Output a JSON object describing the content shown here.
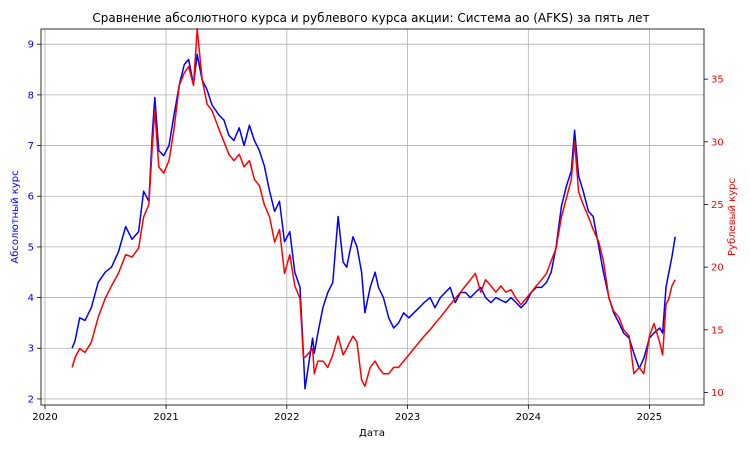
{
  "chart_data": {
    "type": "line",
    "title": "Сравнение абсолютного курса и рублевого курса акции: Система ао (AFKS) за пять лет",
    "xlabel": "Дата",
    "ylabel_left": "Абсолютный курс",
    "ylabel_right": "Рублевый курс",
    "grid": true,
    "xlim": [
      "2019-12-20",
      "2025-06-15"
    ],
    "ylim_left": [
      1.88,
      9.3
    ],
    "ylim_right": [
      9.0,
      39.0
    ],
    "x_ticks": [
      "2020",
      "2021",
      "2022",
      "2023",
      "2024",
      "2025"
    ],
    "y_ticks_left": [
      "2",
      "3",
      "4",
      "5",
      "6",
      "7",
      "8",
      "9"
    ],
    "y_ticks_right": [
      "10",
      "15",
      "20",
      "25",
      "30",
      "35"
    ],
    "colors": {
      "left": "#0000ff",
      "right": "#ff0000"
    },
    "series": [
      {
        "axis": "left",
        "color": "#0000ff",
        "x": [
          "2020-03-23",
          "2020-04-01",
          "2020-04-15",
          "2020-05-01",
          "2020-05-20",
          "2020-06-10",
          "2020-07-01",
          "2020-07-20",
          "2020-08-10",
          "2020-09-01",
          "2020-09-20",
          "2020-10-10",
          "2020-10-25",
          "2020-11-10",
          "2020-11-20",
          "2020-11-28",
          "2020-12-10",
          "2020-12-25",
          "2021-01-10",
          "2021-01-25",
          "2021-02-10",
          "2021-02-25",
          "2021-03-10",
          "2021-03-25",
          "2021-04-05",
          "2021-04-20",
          "2021-05-05",
          "2021-05-20",
          "2021-06-10",
          "2021-06-25",
          "2021-07-10",
          "2021-07-25",
          "2021-08-10",
          "2021-08-25",
          "2021-09-10",
          "2021-09-25",
          "2021-10-10",
          "2021-10-25",
          "2021-11-10",
          "2021-11-25",
          "2021-12-10",
          "2021-12-25",
          "2022-01-10",
          "2022-01-25",
          "2022-02-10",
          "2022-02-20",
          "2022-02-25",
          "2022-03-20",
          "2022-03-25",
          "2022-04-05",
          "2022-04-20",
          "2022-05-05",
          "2022-05-20",
          "2022-06-05",
          "2022-06-20",
          "2022-07-01",
          "2022-07-10",
          "2022-07-20",
          "2022-08-01",
          "2022-08-15",
          "2022-08-25",
          "2022-09-10",
          "2022-09-25",
          "2022-10-05",
          "2022-10-20",
          "2022-11-05",
          "2022-11-20",
          "2022-12-05",
          "2022-12-20",
          "2023-01-05",
          "2023-01-20",
          "2023-02-05",
          "2023-02-20",
          "2023-03-10",
          "2023-03-25",
          "2023-04-10",
          "2023-04-25",
          "2023-05-10",
          "2023-05-25",
          "2023-06-10",
          "2023-06-25",
          "2023-07-10",
          "2023-07-25",
          "2023-08-10",
          "2023-08-25",
          "2023-09-10",
          "2023-09-25",
          "2023-10-10",
          "2023-10-25",
          "2023-11-10",
          "2023-11-25",
          "2023-12-10",
          "2023-12-25",
          "2024-01-10",
          "2024-01-25",
          "2024-02-10",
          "2024-02-25",
          "2024-03-10",
          "2024-03-25",
          "2024-04-10",
          "2024-04-25",
          "2024-05-10",
          "2024-05-20",
          "2024-06-01",
          "2024-06-15",
          "2024-07-01",
          "2024-07-15",
          "2024-08-01",
          "2024-08-15",
          "2024-09-01",
          "2024-09-15",
          "2024-10-01",
          "2024-10-15",
          "2024-11-01",
          "2024-11-15",
          "2024-12-01",
          "2024-12-15",
          "2025-01-01",
          "2025-01-15",
          "2025-02-01",
          "2025-02-10",
          "2025-02-20",
          "2025-03-01",
          "2025-03-10",
          "2025-03-20"
        ],
        "values": [
          3.0,
          3.15,
          3.6,
          3.55,
          3.8,
          4.3,
          4.5,
          4.6,
          4.9,
          5.4,
          5.15,
          5.3,
          6.1,
          5.9,
          7.2,
          7.95,
          6.9,
          6.8,
          7.0,
          7.6,
          8.2,
          8.6,
          8.7,
          8.2,
          8.8,
          8.3,
          8.1,
          7.8,
          7.6,
          7.5,
          7.2,
          7.1,
          7.35,
          7.0,
          7.4,
          7.1,
          6.9,
          6.6,
          6.1,
          5.7,
          5.9,
          5.1,
          5.3,
          4.5,
          4.2,
          2.9,
          2.2,
          3.2,
          2.9,
          3.3,
          3.8,
          4.1,
          4.3,
          5.6,
          4.7,
          4.6,
          4.9,
          5.2,
          5.0,
          4.5,
          3.7,
          4.2,
          4.5,
          4.2,
          4.0,
          3.6,
          3.4,
          3.5,
          3.7,
          3.6,
          3.7,
          3.8,
          3.9,
          4.0,
          3.8,
          4.0,
          4.1,
          4.2,
          3.9,
          4.1,
          4.1,
          4.0,
          4.1,
          4.2,
          4.0,
          3.9,
          4.0,
          3.95,
          3.9,
          4.0,
          3.9,
          3.8,
          3.9,
          4.1,
          4.2,
          4.2,
          4.3,
          4.5,
          5.0,
          5.8,
          6.2,
          6.5,
          7.3,
          6.4,
          6.1,
          5.7,
          5.6,
          5.0,
          4.5,
          4.0,
          3.7,
          3.5,
          3.3,
          3.2,
          2.9,
          2.6,
          2.8,
          3.2,
          3.3,
          3.4,
          3.3,
          4.2,
          4.5,
          4.8,
          5.2
        ]
      },
      {
        "axis": "right",
        "color": "#ff0000",
        "x": [
          "2020-03-23",
          "2020-04-01",
          "2020-04-15",
          "2020-05-01",
          "2020-05-20",
          "2020-06-10",
          "2020-07-01",
          "2020-07-20",
          "2020-08-10",
          "2020-09-01",
          "2020-09-20",
          "2020-10-10",
          "2020-10-25",
          "2020-11-10",
          "2020-11-20",
          "2020-11-28",
          "2020-12-10",
          "2020-12-25",
          "2021-01-10",
          "2021-01-25",
          "2021-02-10",
          "2021-02-25",
          "2021-03-10",
          "2021-03-25",
          "2021-04-05",
          "2021-04-20",
          "2021-05-05",
          "2021-05-20",
          "2021-06-10",
          "2021-06-25",
          "2021-07-10",
          "2021-07-25",
          "2021-08-10",
          "2021-08-25",
          "2021-09-10",
          "2021-09-25",
          "2021-10-10",
          "2021-10-25",
          "2021-11-10",
          "2021-11-25",
          "2021-12-10",
          "2021-12-25",
          "2022-01-10",
          "2022-01-25",
          "2022-02-10",
          "2022-02-20",
          "2022-02-25",
          "2022-03-20",
          "2022-03-25",
          "2022-04-05",
          "2022-04-20",
          "2022-05-05",
          "2022-05-20",
          "2022-06-05",
          "2022-06-20",
          "2022-07-01",
          "2022-07-10",
          "2022-07-20",
          "2022-08-01",
          "2022-08-15",
          "2022-08-25",
          "2022-09-10",
          "2022-09-25",
          "2022-10-05",
          "2022-10-20",
          "2022-11-05",
          "2022-11-20",
          "2022-12-05",
          "2022-12-20",
          "2023-01-05",
          "2023-01-20",
          "2023-02-05",
          "2023-02-20",
          "2023-03-10",
          "2023-03-25",
          "2023-04-10",
          "2023-04-25",
          "2023-05-10",
          "2023-05-25",
          "2023-06-10",
          "2023-06-25",
          "2023-07-10",
          "2023-07-25",
          "2023-08-10",
          "2023-08-25",
          "2023-09-10",
          "2023-09-25",
          "2023-10-10",
          "2023-10-25",
          "2023-11-10",
          "2023-11-25",
          "2023-12-10",
          "2023-12-25",
          "2024-01-10",
          "2024-01-25",
          "2024-02-10",
          "2024-02-25",
          "2024-03-10",
          "2024-03-25",
          "2024-04-10",
          "2024-04-25",
          "2024-05-10",
          "2024-05-20",
          "2024-06-01",
          "2024-06-15",
          "2024-07-01",
          "2024-07-15",
          "2024-08-01",
          "2024-08-15",
          "2024-09-01",
          "2024-09-15",
          "2024-10-01",
          "2024-10-15",
          "2024-11-01",
          "2024-11-15",
          "2024-12-01",
          "2024-12-15",
          "2025-01-01",
          "2025-01-15",
          "2025-02-01",
          "2025-02-10",
          "2025-02-20",
          "2025-03-01",
          "2025-03-10",
          "2025-03-20"
        ],
        "values": [
          12.0,
          12.8,
          13.5,
          13.2,
          14.0,
          16.0,
          17.5,
          18.5,
          19.5,
          21.0,
          20.8,
          21.5,
          24.0,
          25.0,
          29.5,
          32.5,
          28.0,
          27.5,
          28.5,
          31.0,
          34.5,
          35.5,
          36.0,
          34.5,
          39.0,
          35.0,
          33.0,
          32.5,
          31.0,
          30.0,
          29.0,
          28.5,
          29.0,
          28.0,
          28.5,
          27.0,
          26.5,
          25.0,
          24.0,
          22.0,
          23.0,
          19.5,
          21.0,
          18.5,
          17.5,
          12.8,
          12.8,
          13.5,
          11.5,
          12.5,
          12.5,
          12.0,
          13.0,
          14.5,
          13.0,
          13.5,
          14.0,
          14.5,
          14.0,
          11.0,
          10.5,
          12.0,
          12.5,
          12.0,
          11.5,
          11.5,
          12.0,
          12.0,
          12.5,
          13.0,
          13.5,
          14.0,
          14.5,
          15.0,
          15.5,
          16.0,
          16.5,
          17.0,
          17.5,
          18.0,
          18.5,
          19.0,
          19.5,
          18.0,
          19.0,
          18.5,
          18.0,
          18.5,
          18.0,
          18.2,
          17.5,
          17.0,
          17.5,
          18.0,
          18.5,
          19.0,
          19.5,
          20.5,
          21.5,
          24.0,
          25.5,
          27.0,
          30.0,
          26.0,
          25.0,
          24.0,
          23.0,
          22.0,
          20.5,
          17.5,
          16.5,
          16.0,
          15.0,
          14.5,
          11.5,
          12.0,
          11.5,
          14.5,
          15.5,
          14.0,
          13.0,
          17.0,
          17.5,
          18.5,
          19.0
        ]
      }
    ]
  }
}
